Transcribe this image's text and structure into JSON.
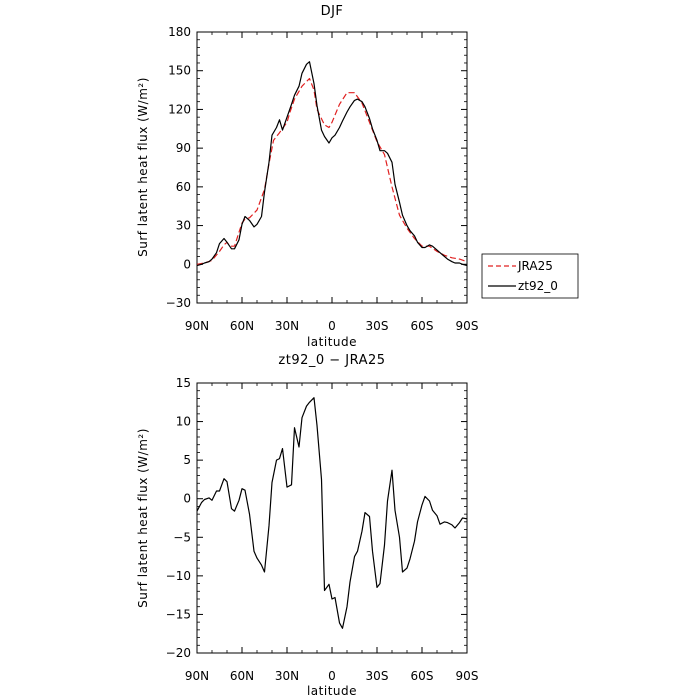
{
  "chart_data": [
    {
      "type": "line",
      "title": "DJF",
      "xlabel": "latitude",
      "ylabel": "Surf latent heat flux (W/m²)",
      "xlim": [
        90,
        -90
      ],
      "ylim": [
        -30,
        180
      ],
      "x_ticks": [
        90,
        60,
        30,
        0,
        -30,
        -60,
        -90
      ],
      "x_tick_labels": [
        "90N",
        "60N",
        "30N",
        "0",
        "30S",
        "60S",
        "90S"
      ],
      "y_ticks": [
        -30,
        0,
        30,
        60,
        90,
        120,
        150,
        180
      ],
      "y_tick_labels": [
        "−30",
        "0",
        "30",
        "60",
        "90",
        "120",
        "150",
        "180"
      ],
      "legend_position": "right",
      "series": [
        {
          "name": "JRA25",
          "color": "#e02020",
          "style": "dashed",
          "x": [
            90,
            85,
            80,
            75,
            72,
            70,
            68,
            65,
            60,
            58,
            55,
            50,
            45,
            42,
            39,
            35,
            30,
            28,
            25,
            20,
            15,
            12,
            10,
            5,
            2,
            0,
            -5,
            -10,
            -15,
            -20,
            -25,
            -30,
            -35,
            -40,
            -45,
            -50,
            -55,
            -60,
            -65,
            -70,
            -75,
            -80,
            -85,
            -90
          ],
          "y": [
            0,
            1,
            3,
            10,
            15,
            17,
            14,
            14,
            32,
            35,
            36,
            42,
            58,
            78,
            96,
            102,
            110,
            118,
            128,
            138,
            144,
            135,
            120,
            108,
            106,
            110,
            124,
            133,
            133,
            125,
            110,
            95,
            85,
            60,
            38,
            28,
            20,
            14,
            14,
            10,
            7,
            5,
            4,
            2
          ]
        },
        {
          "name": "zt92_0",
          "color": "#000000",
          "style": "solid",
          "x": [
            90,
            87,
            85,
            82,
            80,
            77,
            75,
            72,
            70,
            67,
            65,
            62,
            60,
            58,
            55,
            52,
            50,
            47,
            45,
            42,
            40,
            37,
            35,
            33,
            30,
            27,
            25,
            22,
            20,
            17,
            15,
            12,
            10,
            7,
            5,
            2,
            0,
            -2,
            -5,
            -7,
            -10,
            -12,
            -15,
            -17,
            -20,
            -22,
            -25,
            -27,
            -30,
            -32,
            -35,
            -37,
            -40,
            -42,
            -45,
            -47,
            -50,
            -52,
            -55,
            -57,
            -60,
            -62,
            -65,
            -67,
            -70,
            -72,
            -75,
            -77,
            -80,
            -82,
            -85,
            -87,
            -90
          ],
          "y": [
            -1,
            0,
            1,
            2,
            4,
            9,
            16,
            20,
            17,
            12,
            12,
            19,
            31,
            37,
            34,
            29,
            31,
            37,
            56,
            79,
            100,
            106,
            112,
            104,
            114,
            124,
            131,
            138,
            148,
            155,
            157,
            140,
            123,
            104,
            99,
            94,
            98,
            100,
            106,
            111,
            118,
            122,
            127,
            128,
            126,
            122,
            113,
            105,
            96,
            88,
            88,
            86,
            79,
            62,
            48,
            38,
            30,
            26,
            22,
            17,
            13,
            13,
            15,
            14,
            11,
            9,
            6,
            4,
            2,
            1,
            1,
            0,
            -1
          ]
        }
      ]
    },
    {
      "type": "line",
      "title": "zt92_0 − JRA25",
      "xlabel": "latitude",
      "ylabel": "Surf latent heat flux (W/m²)",
      "xlim": [
        90,
        -90
      ],
      "ylim": [
        -20,
        15
      ],
      "x_ticks": [
        90,
        60,
        30,
        0,
        -30,
        -60,
        -90
      ],
      "x_tick_labels": [
        "90N",
        "60N",
        "30N",
        "0",
        "30S",
        "60S",
        "90S"
      ],
      "y_ticks": [
        -20,
        -15,
        -10,
        -5,
        0,
        5,
        10,
        15
      ],
      "y_tick_labels": [
        "−20",
        "−15",
        "−10",
        "−5",
        "0",
        "5",
        "10",
        "15"
      ],
      "series": [
        {
          "color": "#000000",
          "style": "solid",
          "x": [
            90,
            87,
            85,
            82,
            80,
            77,
            75,
            72,
            70,
            67,
            65,
            62,
            60,
            58,
            55,
            52,
            50,
            47,
            45,
            42,
            40,
            37,
            35,
            33,
            30,
            27,
            25,
            22,
            20,
            17,
            15,
            12,
            10,
            7,
            5,
            2,
            0,
            -2,
            -5,
            -7,
            -10,
            -12,
            -15,
            -17,
            -20,
            -22,
            -25,
            -27,
            -30,
            -32,
            -35,
            -37,
            -40,
            -42,
            -45,
            -47,
            -50,
            -52,
            -55,
            -57,
            -60,
            -62,
            -65,
            -67,
            -70,
            -72,
            -75,
            -77,
            -80,
            -82,
            -85,
            -87,
            -90
          ],
          "y": [
            -1.6,
            -0.5,
            -0.1,
            0.1,
            -0.2,
            1.0,
            1.0,
            2.6,
            2.2,
            -1.3,
            -1.6,
            -0.2,
            1.3,
            1.1,
            -2.0,
            -6.8,
            -7.7,
            -8.6,
            -9.5,
            -3.5,
            2.1,
            5.0,
            5.2,
            6.5,
            1.5,
            1.8,
            9.2,
            6.7,
            10.5,
            12.0,
            12.5,
            13.1,
            9.5,
            2.5,
            -11.9,
            -11.1,
            -13.0,
            -12.8,
            -16.1,
            -16.8,
            -14.0,
            -10.8,
            -7.5,
            -6.8,
            -4.2,
            -1.8,
            -2.3,
            -6.8,
            -11.5,
            -11.0,
            -6.0,
            -0.3,
            3.7,
            -1.5,
            -5.0,
            -9.5,
            -9.0,
            -7.8,
            -5.5,
            -3.0,
            -0.8,
            0.3,
            -0.3,
            -1.5,
            -2.2,
            -3.3,
            -3.0,
            -3.1,
            -3.4,
            -3.8,
            -3.1,
            -2.5,
            -2.6
          ]
        }
      ]
    }
  ]
}
